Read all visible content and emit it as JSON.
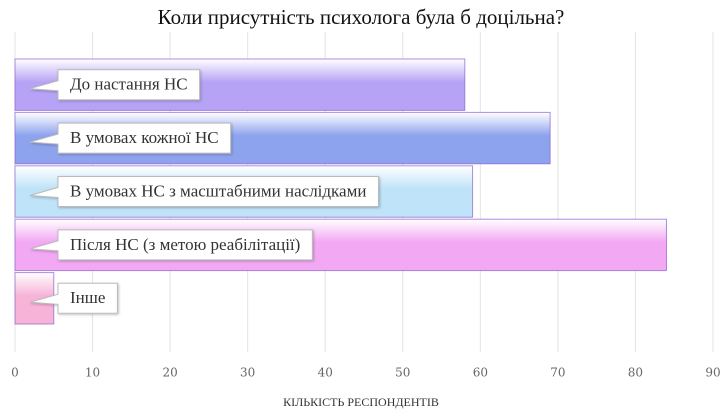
{
  "chart_data": {
    "type": "bar",
    "orientation": "horizontal",
    "title": "Коли присутність психолога була б доцільна?",
    "x_label": "КІЛЬКІСТЬ РЕСПОНДЕНТІВ",
    "categories": [
      "До настання НС",
      "В умовах кожної НС",
      "В умовах НС з масштабними наслідками",
      "Після НС (з метою реабілітації)",
      "Інше"
    ],
    "values": [
      58,
      69,
      59,
      84,
      5
    ],
    "colors": [
      "#b7a3f5",
      "#8ea3ee",
      "#bfe3f8",
      "#f3a8f3",
      "#f7b3d8"
    ],
    "xlim": [
      0,
      90
    ],
    "xticks": [
      0,
      10,
      20,
      30,
      40,
      50,
      60,
      70,
      80,
      90
    ],
    "grid": true
  }
}
